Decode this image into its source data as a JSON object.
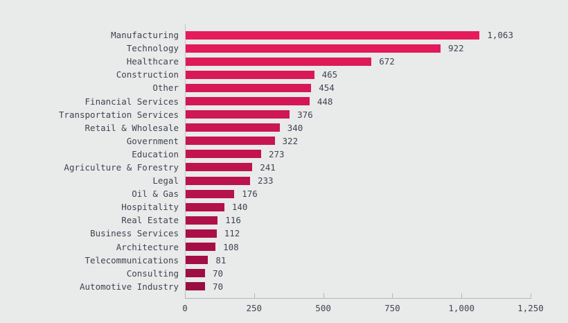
{
  "chart_data": {
    "type": "bar",
    "orientation": "horizontal",
    "title": "",
    "xlabel": "",
    "ylabel": "",
    "grid": false,
    "legend": "none",
    "xlim": [
      0,
      1250
    ],
    "x_tick_values": [
      0,
      250,
      500,
      750,
      1000,
      1250
    ],
    "x_tick_labels": [
      "0",
      "250",
      "500",
      "750",
      "1,000",
      "1,250"
    ],
    "categories": [
      "Manufacturing",
      "Technology",
      "Healthcare",
      "Construction",
      "Other",
      "Financial Services",
      "Transportation Services",
      "Retail & Wholesale",
      "Government",
      "Education",
      "Agriculture & Forestry",
      "Legal",
      "Oil & Gas",
      "Hospitality",
      "Real Estate",
      "Business Services",
      "Architecture",
      "Telecommunications",
      "Consulting",
      "Automotive Industry"
    ],
    "values": [
      1063,
      922,
      672,
      465,
      454,
      448,
      376,
      340,
      322,
      273,
      241,
      233,
      176,
      140,
      116,
      112,
      108,
      81,
      70,
      70
    ],
    "value_labels": [
      "1,063",
      "922",
      "672",
      "465",
      "454",
      "448",
      "376",
      "340",
      "322",
      "273",
      "241",
      "233",
      "176",
      "140",
      "116",
      "112",
      "108",
      "81",
      "70",
      "70"
    ],
    "bar_colors": [
      "#e61b5b",
      "#e21a5a",
      "#de1a58",
      "#da1957",
      "#d61856",
      "#d21754",
      "#ce1753",
      "#ca1652",
      "#c61550",
      "#c2144f",
      "#be144e",
      "#ba134d",
      "#b6124b",
      "#b2114a",
      "#ae1149",
      "#aa1047",
      "#a60f46",
      "#a20e45",
      "#9e0e43",
      "#9a0d42"
    ]
  },
  "colors": {
    "background": "#e9eaea",
    "axis_line": "#b2b6bb",
    "text": "#3f4450",
    "bar_gradient_high": "#e61b5b",
    "bar_gradient_low": "#9a0d42"
  }
}
